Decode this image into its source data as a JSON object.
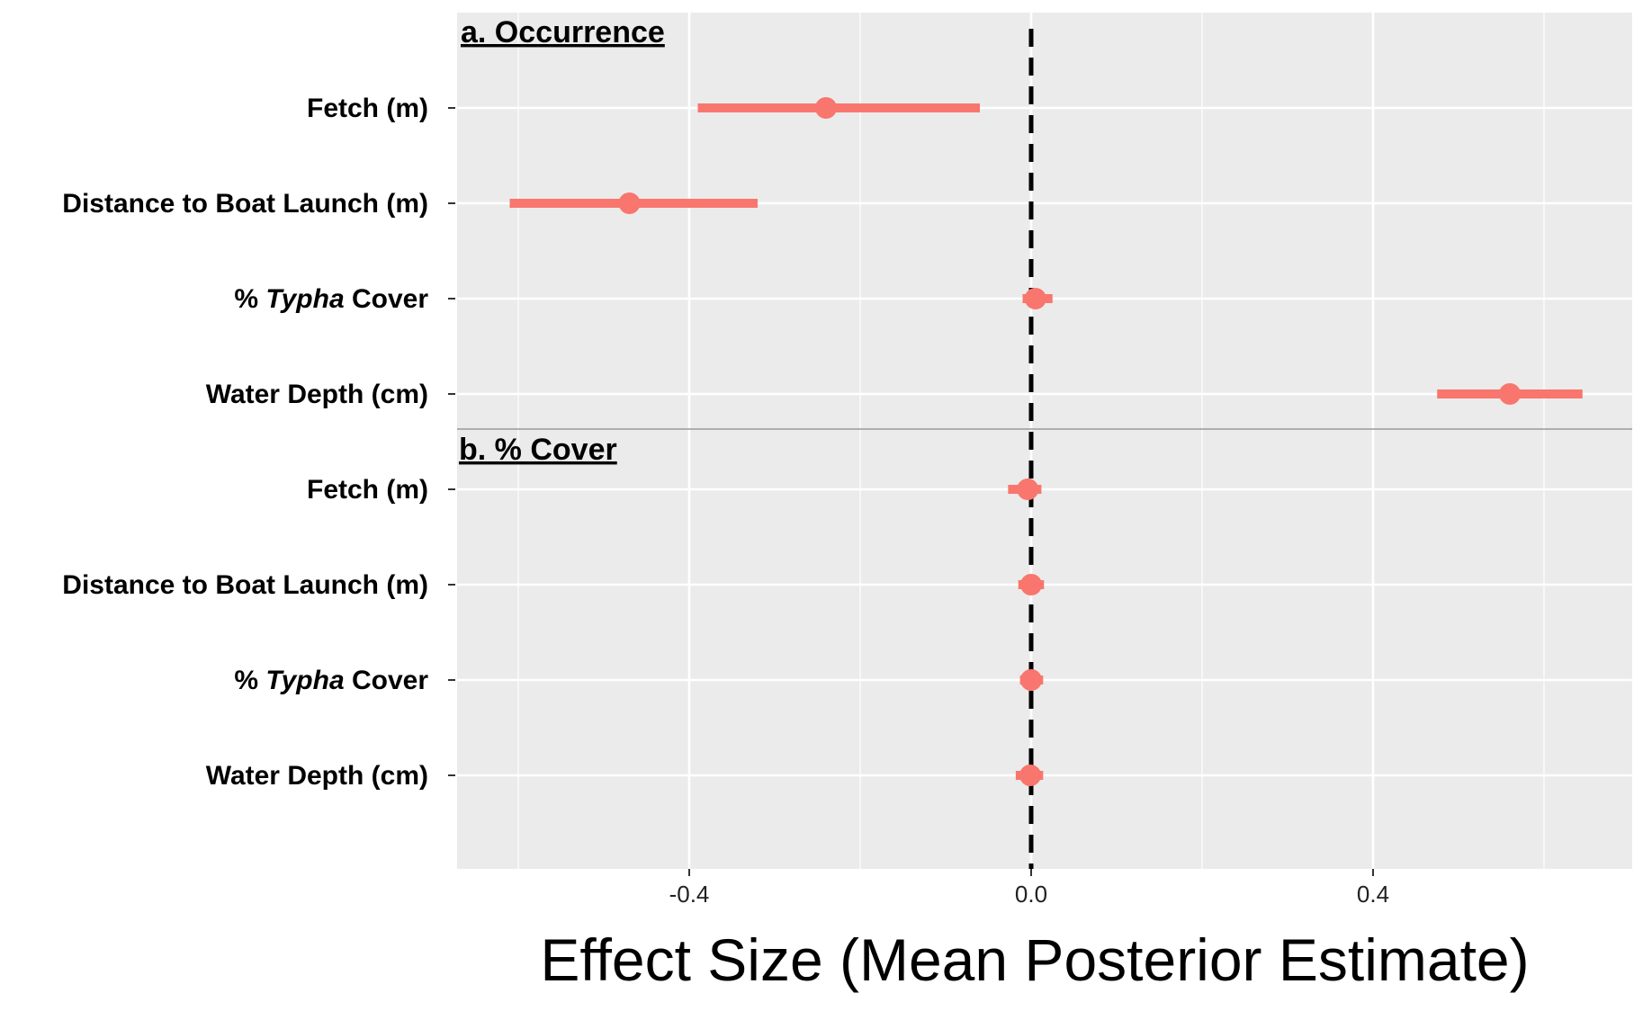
{
  "chart_data": {
    "type": "scatter",
    "subtype": "coefficient-plot-with-intervals",
    "xlabel": "Effect Size (Mean Posterior Estimate)",
    "xlim": [
      -0.67,
      0.7
    ],
    "x_ticks": [
      -0.4,
      0.0,
      0.4
    ],
    "x_tick_labels": [
      "-0.4",
      "0.0",
      "0.4"
    ],
    "minor_gridlines": [
      -0.6,
      -0.2,
      0.2,
      0.6
    ],
    "reference_line": {
      "x": 0.0,
      "style": "dashed",
      "color": "#000000"
    },
    "grid": true,
    "panel_background": "#EBEBEB",
    "grid_color": "#FFFFFF",
    "point_color": "#F8766D",
    "panels": [
      {
        "title": "a. Occurrence",
        "rows": [
          {
            "label_pre": "Fetch (m)",
            "label_italic": "",
            "label_post": "",
            "estimate": -0.24,
            "lower": -0.39,
            "upper": -0.06
          },
          {
            "label_pre": "Distance to Boat Launch (m)",
            "label_italic": "",
            "label_post": "",
            "estimate": -0.47,
            "lower": -0.61,
            "upper": -0.32
          },
          {
            "label_pre": "% ",
            "label_italic": "Typha",
            "label_post": " Cover",
            "estimate": 0.005,
            "lower": -0.01,
            "upper": 0.025
          },
          {
            "label_pre": "Water Depth (cm)",
            "label_italic": "",
            "label_post": "",
            "estimate": 0.56,
            "lower": 0.475,
            "upper": 0.645
          }
        ]
      },
      {
        "title": "b. % Cover",
        "rows": [
          {
            "label_pre": "Fetch (m)",
            "label_italic": "",
            "label_post": "",
            "estimate": -0.004,
            "lower": -0.027,
            "upper": 0.012
          },
          {
            "label_pre": "Distance to Boat Launch (m)",
            "label_italic": "",
            "label_post": "",
            "estimate": 0.0,
            "lower": -0.015,
            "upper": 0.015
          },
          {
            "label_pre": "% ",
            "label_italic": "Typha",
            "label_post": " Cover",
            "estimate": 0.0,
            "lower": -0.013,
            "upper": 0.014
          },
          {
            "label_pre": "Water Depth (cm)",
            "label_italic": "",
            "label_post": "",
            "estimate": -0.001,
            "lower": -0.018,
            "upper": 0.014
          }
        ]
      }
    ]
  }
}
